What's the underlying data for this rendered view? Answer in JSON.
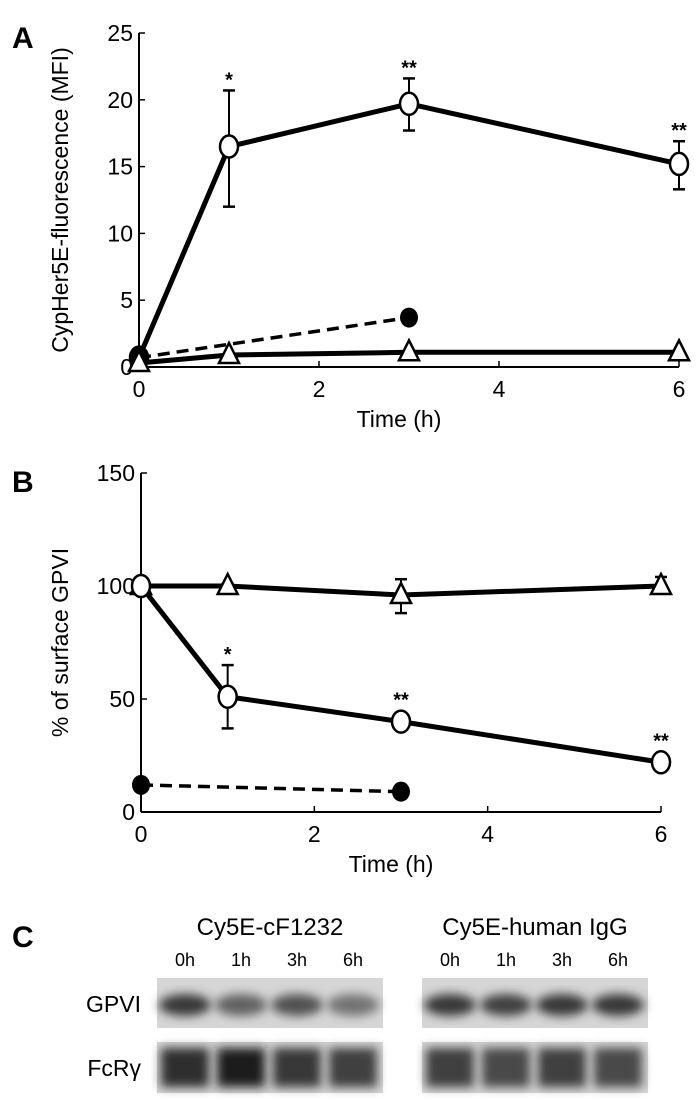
{
  "chart_data": [
    {
      "panel": "A",
      "type": "line",
      "xlabel": "Time (h)",
      "ylabel": "CypHer5E-fluorescence (MFI)",
      "xlim": [
        0,
        6
      ],
      "ylim": [
        0,
        25
      ],
      "xticks": [
        0,
        2,
        4,
        6
      ],
      "yticks": [
        0,
        5,
        10,
        15,
        20,
        25
      ],
      "grid": false,
      "series": [
        {
          "marker": "open-circle",
          "line": "solid",
          "x": [
            0,
            1,
            3,
            6
          ],
          "y": [
            0.7,
            16.5,
            19.7,
            15.2
          ],
          "err_low": [
            0,
            12.0,
            17.7,
            13.3
          ],
          "err_high": [
            0,
            20.7,
            21.6,
            16.9
          ],
          "annotations": [
            "",
            "*",
            "**",
            "**"
          ]
        },
        {
          "marker": "filled-circle",
          "line": "dashed",
          "x": [
            0,
            3
          ],
          "y": [
            0.7,
            3.7
          ],
          "err_low": [
            0,
            0
          ],
          "err_high": [
            0,
            0
          ],
          "annotations": [
            "",
            ""
          ]
        },
        {
          "marker": "open-triangle",
          "line": "solid",
          "x": [
            0,
            1,
            3,
            6
          ],
          "y": [
            0.3,
            0.9,
            1.1,
            1.1
          ],
          "err_low": [
            0,
            0,
            0,
            0
          ],
          "err_high": [
            0,
            0,
            0,
            0
          ],
          "annotations": [
            "",
            "",
            "",
            ""
          ]
        }
      ]
    },
    {
      "panel": "B",
      "type": "line",
      "xlabel": "Time (h)",
      "ylabel": "% of surface GPVI",
      "xlim": [
        0,
        6
      ],
      "ylim": [
        0,
        150
      ],
      "xticks": [
        0,
        2,
        4,
        6
      ],
      "yticks": [
        0,
        50,
        100,
        150
      ],
      "grid": false,
      "series": [
        {
          "marker": "open-triangle",
          "line": "solid",
          "x": [
            0,
            1,
            3,
            6
          ],
          "y": [
            100,
            100,
            96,
            100
          ],
          "err_low": [
            100,
            100,
            88,
            100
          ],
          "err_high": [
            100,
            101,
            103,
            104
          ],
          "annotations": [
            "",
            "",
            "",
            ""
          ]
        },
        {
          "marker": "open-circle",
          "line": "solid",
          "x": [
            0,
            1,
            3,
            6
          ],
          "y": [
            100,
            51,
            40,
            22
          ],
          "err_low": [
            100,
            37,
            40,
            19
          ],
          "err_high": [
            100,
            65,
            40,
            25
          ],
          "annotations": [
            "",
            "*",
            "**",
            "**"
          ]
        },
        {
          "marker": "filled-circle",
          "line": "dashed",
          "x": [
            0,
            3
          ],
          "y": [
            12,
            9
          ],
          "err_low": [
            12,
            9
          ],
          "err_high": [
            12,
            9
          ],
          "annotations": [
            "",
            ""
          ]
        }
      ]
    }
  ],
  "panel_c": {
    "letter": "C",
    "blots": [
      {
        "title": "Cy5E-cF1232",
        "lanes": [
          "0h",
          "1h",
          "3h",
          "6h"
        ],
        "gpvi_intensity": [
          0.85,
          0.6,
          0.7,
          0.5
        ],
        "fcr_intensity": [
          0.9,
          1.0,
          0.85,
          0.8
        ]
      },
      {
        "title": "Cy5E-human IgG",
        "lanes": [
          "0h",
          "1h",
          "3h",
          "6h"
        ],
        "gpvi_intensity": [
          0.85,
          0.8,
          0.85,
          0.85
        ],
        "fcr_intensity": [
          0.8,
          0.75,
          0.8,
          0.75
        ]
      }
    ],
    "rows": [
      "GPVI",
      "FcRγ"
    ]
  }
}
